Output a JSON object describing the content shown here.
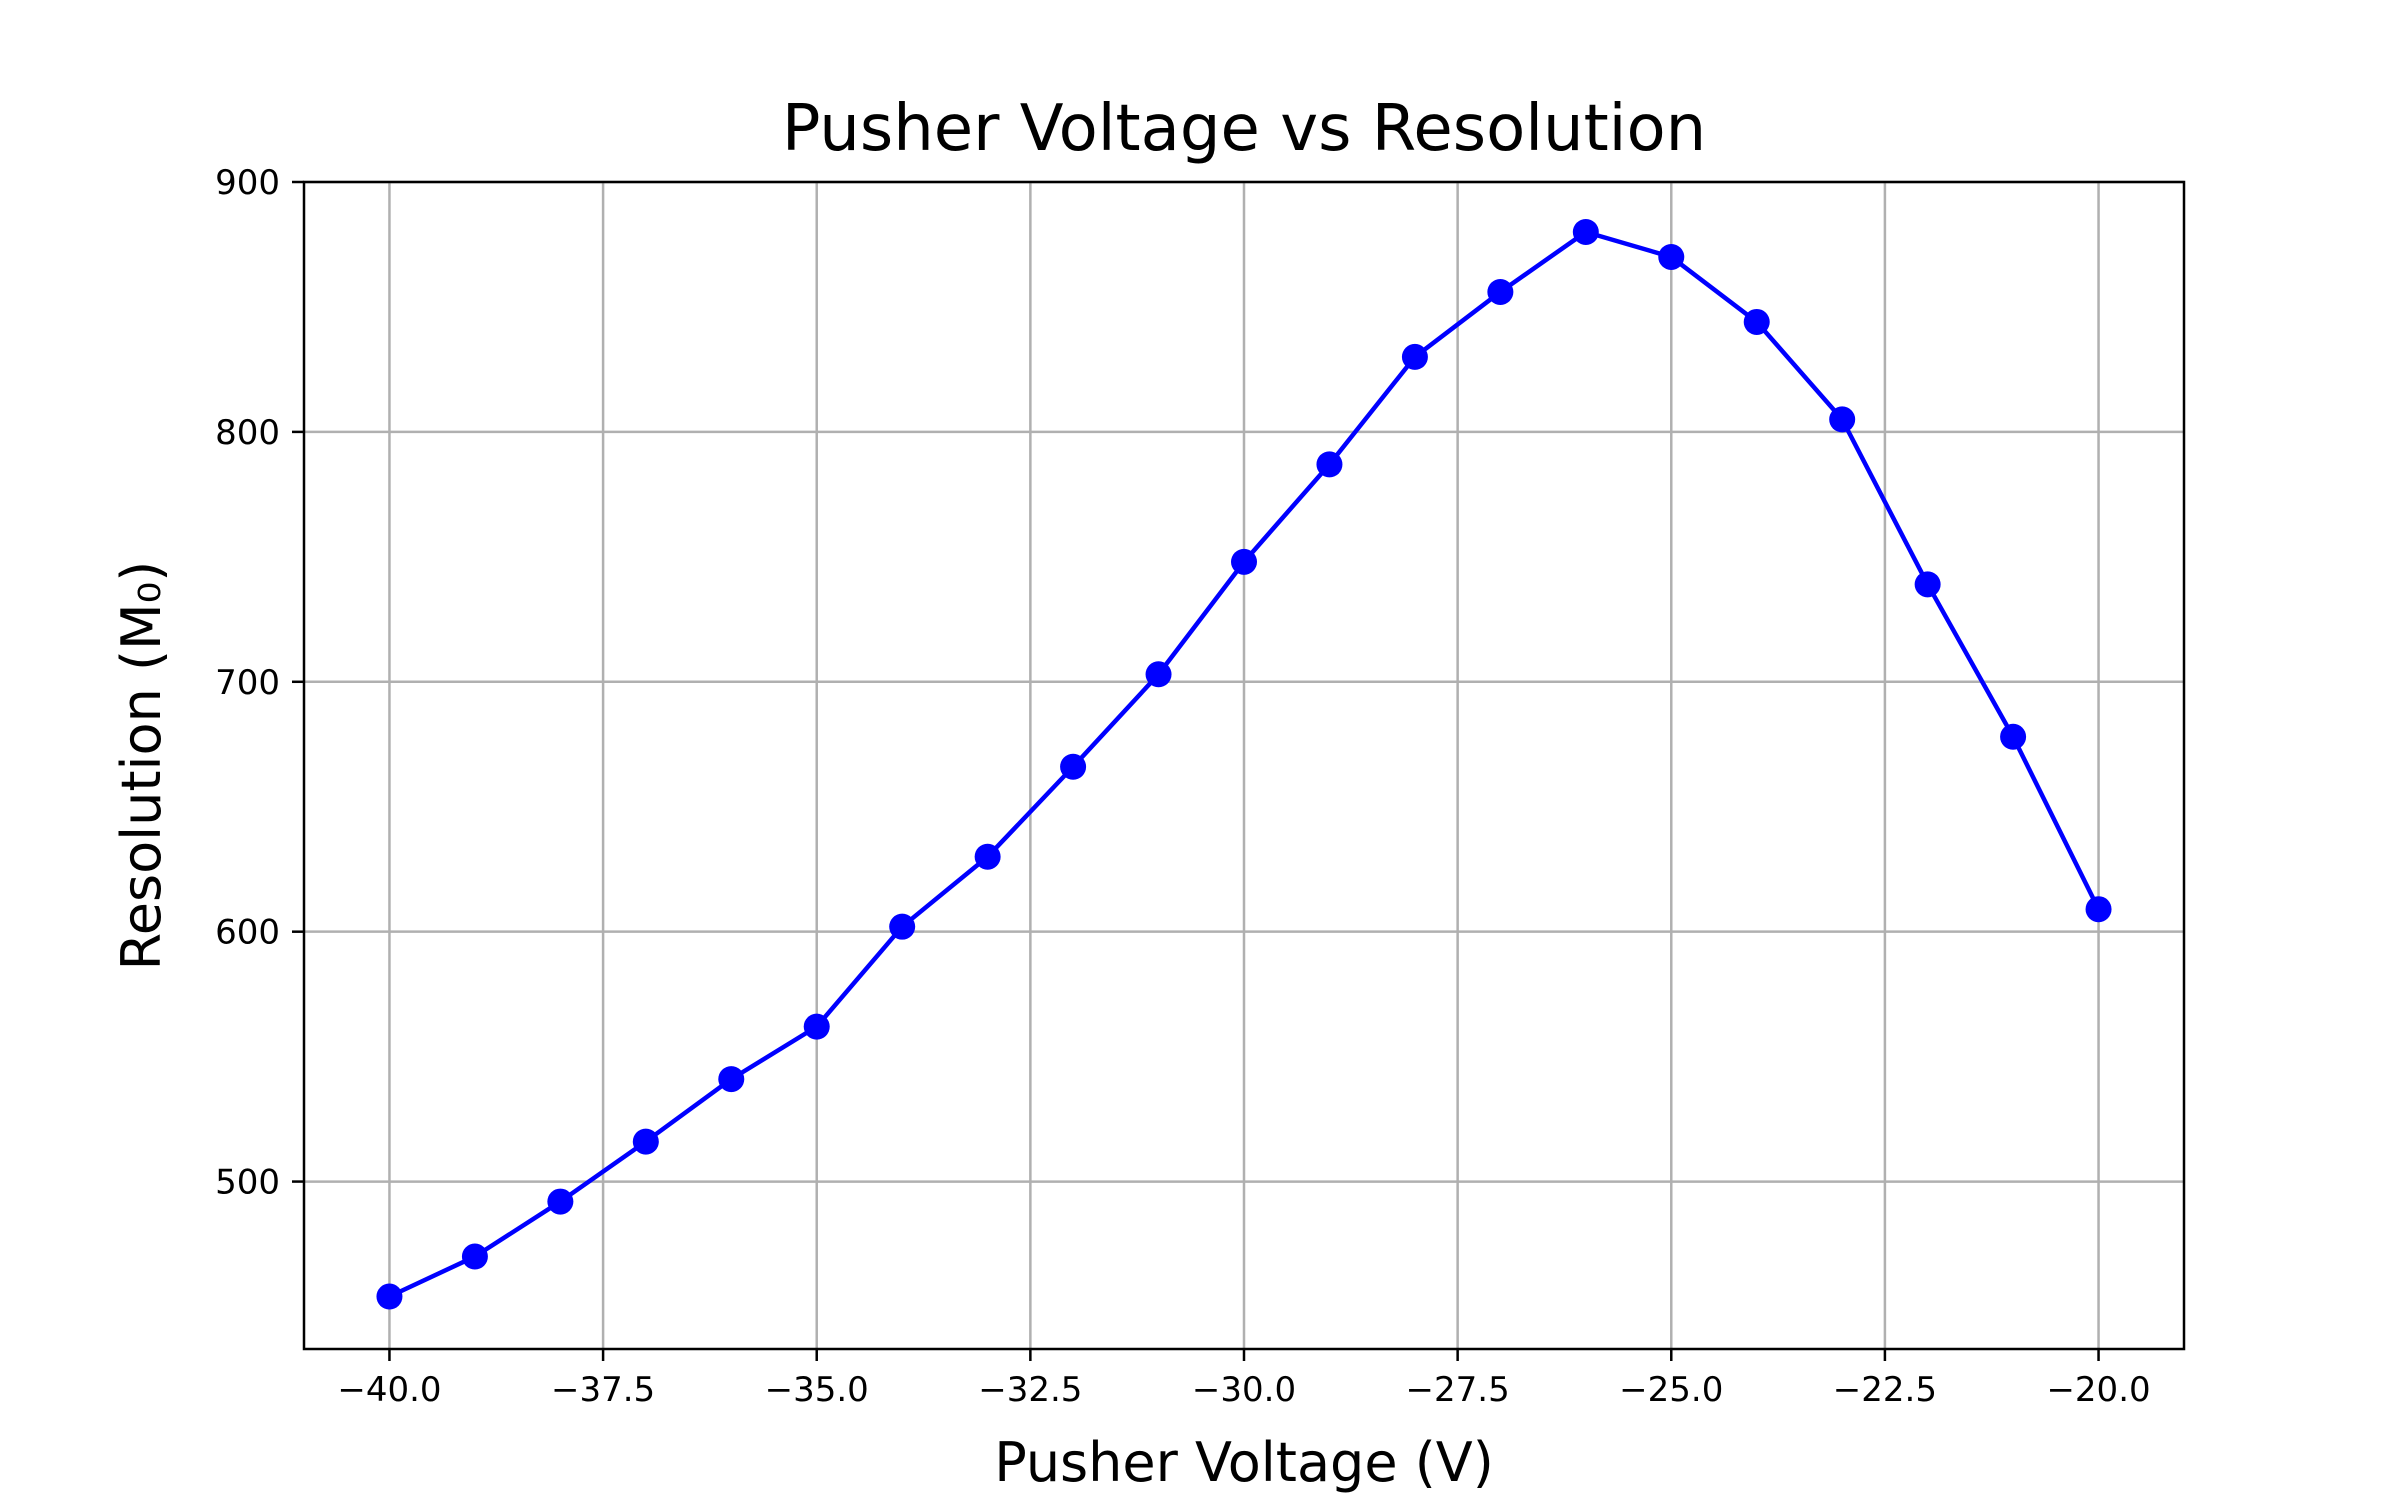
{
  "chart_data": {
    "type": "line",
    "title": "Pusher Voltage vs Resolution",
    "xlabel": "Pusher Voltage (V)",
    "ylabel": "Resolution (M₀)",
    "xlim": [
      -41.0,
      -19.0
    ],
    "ylim": [
      433,
      900
    ],
    "x_ticks": [
      -40.0,
      -37.5,
      -35.0,
      -32.5,
      -30.0,
      -27.5,
      -25.0,
      -22.5,
      -20.0
    ],
    "x_tick_labels": [
      "−40.0",
      "−37.5",
      "−35.0",
      "−32.5",
      "−30.0",
      "−27.5",
      "−25.0",
      "−22.5",
      "−20.0"
    ],
    "y_ticks": [
      500,
      600,
      700,
      800,
      900
    ],
    "y_tick_labels": [
      "500",
      "600",
      "700",
      "800",
      "900"
    ],
    "grid": true,
    "color": "#0000ff",
    "series": [
      {
        "x": [
          -40,
          -39,
          -38,
          -37,
          -36,
          -35,
          -34,
          -33,
          -32,
          -31,
          -30,
          -29,
          -28,
          -27,
          -26,
          -25,
          -24,
          -23,
          -22,
          -21,
          -20
        ],
        "values": [
          454,
          470,
          492,
          516,
          541,
          562,
          602,
          630,
          666,
          703,
          748,
          787,
          830,
          856,
          880,
          870,
          844,
          805,
          739,
          678,
          609
        ]
      }
    ]
  }
}
